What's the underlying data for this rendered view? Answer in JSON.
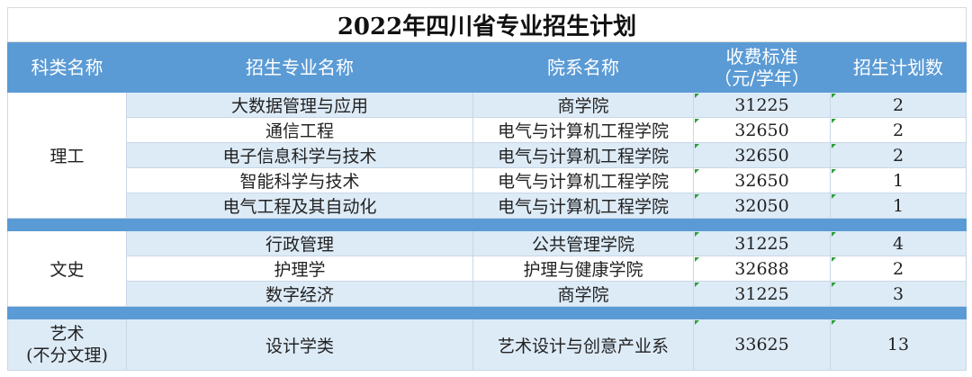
{
  "title": "2022年四川省专业招生计划",
  "headers": [
    "科类名称",
    "招生专业名称",
    "院系名称",
    "收费标准",
    "（元/学年）",
    "招生计划数"
  ],
  "groups": [
    {
      "category": "理工",
      "rows": [
        {
          "major": "大数据管理与应用",
          "college": "商学院",
          "fee": "31225",
          "plan": "2"
        },
        {
          "major": "通信工程",
          "college": "电气与计算机工程学院",
          "fee": "32650",
          "plan": "2"
        },
        {
          "major": "电子信息科学与技术",
          "college": "电气与计算机工程学院",
          "fee": "32650",
          "plan": "2"
        },
        {
          "major": "智能科学与技术",
          "college": "电气与计算机工程学院",
          "fee": "32650",
          "plan": "1"
        },
        {
          "major": "电气工程及其自动化",
          "college": "电气与计算机工程学院",
          "fee": "32050",
          "plan": "1"
        }
      ]
    },
    {
      "category": "文史",
      "rows": [
        {
          "major": "行政管理",
          "college": "公共管理学院",
          "fee": "31225",
          "plan": "4"
        },
        {
          "major": "护理学",
          "college": "护理与健康学院",
          "fee": "32688",
          "plan": "2"
        },
        {
          "major": "数字经济",
          "college": "商学院",
          "fee": "31225",
          "plan": "3"
        }
      ]
    },
    {
      "category": "艺术",
      "category_sub": "(不分文理)",
      "rows": [
        {
          "major": "设计学类",
          "college": "艺术设计与创意产业系",
          "fee": "33625",
          "plan": "13"
        }
      ]
    }
  ],
  "colors": {
    "header": "#5b9bd5",
    "row_light": "#ddebf7"
  }
}
